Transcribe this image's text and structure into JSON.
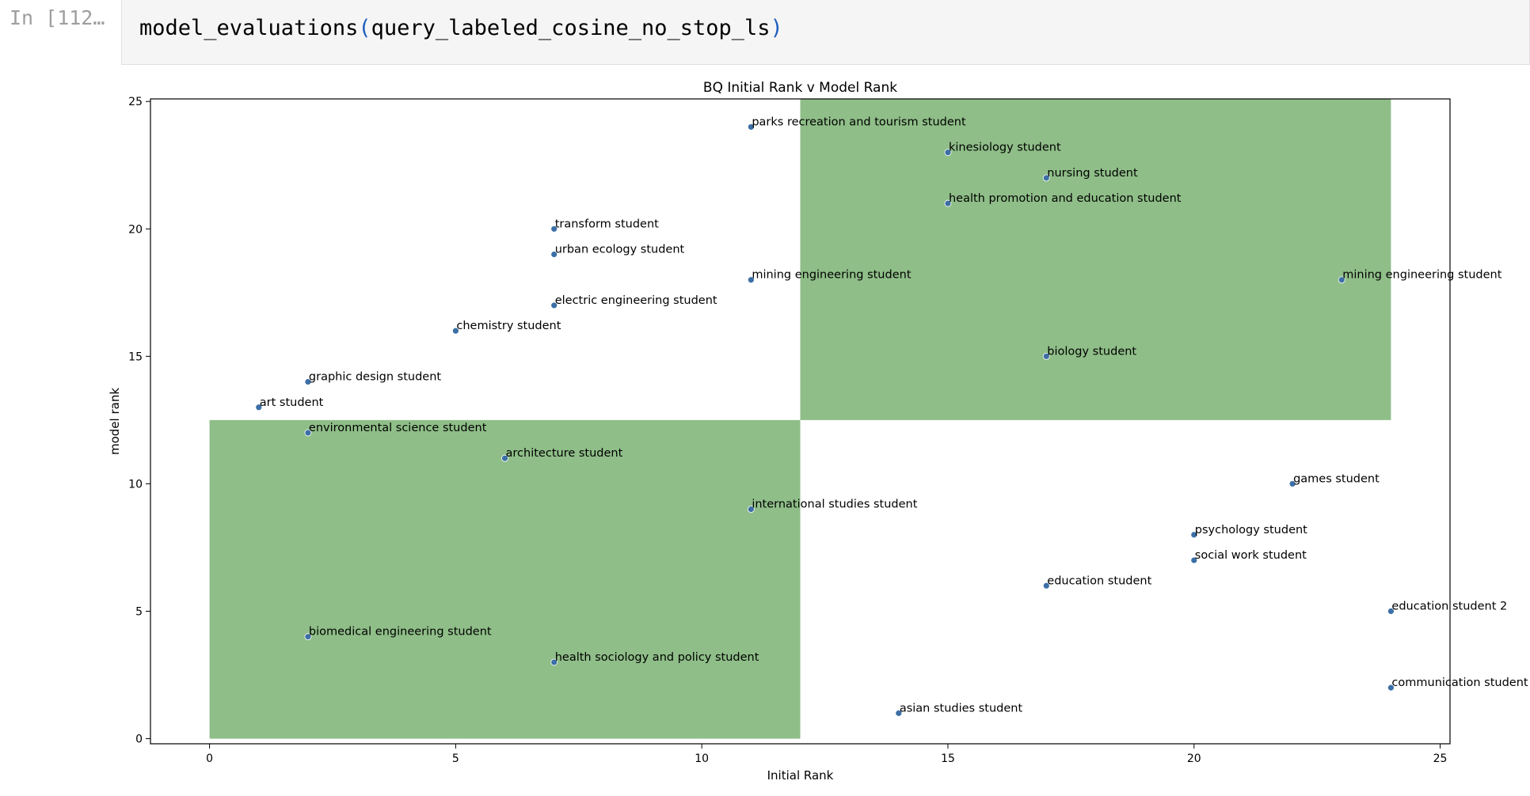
{
  "cell": {
    "prompt": "In [112…",
    "code_fn": "model_evaluations",
    "code_open": "(",
    "code_arg": "query_labeled_cosine_no_stop_ls",
    "code_close": ")"
  },
  "chart_data": {
    "type": "scatter",
    "title": "BQ Initial Rank v Model Rank",
    "xlabel": "Initial Rank",
    "ylabel": "model rank",
    "xlim": [
      -1.2,
      25.2
    ],
    "ylim": [
      -0.2,
      25.1
    ],
    "xticks": [
      0,
      5,
      10,
      15,
      20,
      25
    ],
    "yticks": [
      0,
      5,
      10,
      15,
      20,
      25
    ],
    "grid": false,
    "colors": {
      "point": "#3b6fa6",
      "region": "#8fbe88",
      "axis": "#000000"
    },
    "regions": [
      {
        "x": [
          0,
          12
        ],
        "y": [
          0,
          12.5
        ]
      },
      {
        "x": [
          12,
          24
        ],
        "y": [
          12.5,
          25.1
        ]
      }
    ],
    "points": [
      {
        "x": 11,
        "y": 24,
        "label": "parks recreation and tourism student"
      },
      {
        "x": 15,
        "y": 23,
        "label": "kinesiology student"
      },
      {
        "x": 17,
        "y": 22,
        "label": "nursing student"
      },
      {
        "x": 15,
        "y": 21,
        "label": "health promotion and education student"
      },
      {
        "x": 7,
        "y": 20,
        "label": "transform student"
      },
      {
        "x": 7,
        "y": 19,
        "label": "urban ecology student"
      },
      {
        "x": 11,
        "y": 18,
        "label": "mining engineering student"
      },
      {
        "x": 23,
        "y": 18,
        "label": "mining engineering student"
      },
      {
        "x": 7,
        "y": 17,
        "label": "electric engineering student"
      },
      {
        "x": 5,
        "y": 16,
        "label": "chemistry student"
      },
      {
        "x": 17,
        "y": 15,
        "label": "biology student"
      },
      {
        "x": 2,
        "y": 14,
        "label": "graphic design student"
      },
      {
        "x": 1,
        "y": 13,
        "label": "art student"
      },
      {
        "x": 2,
        "y": 12,
        "label": "environmental science student"
      },
      {
        "x": 6,
        "y": 11,
        "label": "architecture student"
      },
      {
        "x": 22,
        "y": 10,
        "label": "games student"
      },
      {
        "x": 11,
        "y": 9,
        "label": "international studies student"
      },
      {
        "x": 20,
        "y": 8,
        "label": "psychology student"
      },
      {
        "x": 20,
        "y": 7,
        "label": "social work student"
      },
      {
        "x": 17,
        "y": 6,
        "label": "education student"
      },
      {
        "x": 24,
        "y": 5,
        "label": "education student 2"
      },
      {
        "x": 2,
        "y": 4,
        "label": "biomedical engineering student"
      },
      {
        "x": 7,
        "y": 3,
        "label": "health sociology and policy student"
      },
      {
        "x": 24,
        "y": 2,
        "label": "communication student"
      },
      {
        "x": 14,
        "y": 1,
        "label": "asian studies student"
      }
    ]
  }
}
